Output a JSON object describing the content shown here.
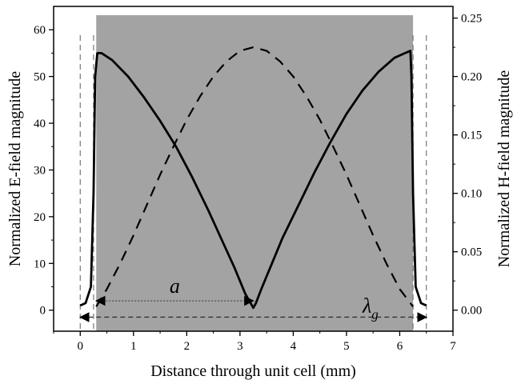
{
  "chart_data": {
    "type": "line",
    "xlabel": "Distance through unit cell (mm)",
    "ylabel_left": "Normalized E-field magnitude",
    "ylabel_right": "Normalized H-field magnitude",
    "xlim": [
      -0.5,
      7
    ],
    "ylim_left": [
      -4.5,
      65
    ],
    "ylim_right": [
      -0.018,
      0.26
    ],
    "x_ticks": [
      "0",
      "1",
      "2",
      "3",
      "4",
      "5",
      "6",
      "7"
    ],
    "y_ticks_left": [
      "0",
      "10",
      "20",
      "30",
      "40",
      "50",
      "60"
    ],
    "y_ticks_right": [
      "0.00",
      "0.05",
      "0.10",
      "0.15",
      "0.20",
      "0.25"
    ],
    "shaded_region": {
      "x_start": 0.3,
      "x_end": 6.25,
      "color": "#a3a3a3"
    },
    "vertical_dashed_lines": [
      0,
      0.25,
      6.25,
      6.5
    ],
    "series": [
      {
        "axis": "left",
        "style": "solid",
        "x": [
          0.0,
          0.1,
          0.2,
          0.25,
          0.28,
          0.32,
          0.4,
          0.6,
          0.9,
          1.2,
          1.5,
          1.8,
          2.1,
          2.4,
          2.7,
          2.9,
          3.1,
          3.2,
          3.25,
          3.3,
          3.4,
          3.6,
          3.8,
          4.1,
          4.4,
          4.7,
          5.0,
          5.3,
          5.6,
          5.9,
          6.1,
          6.2,
          6.22,
          6.25,
          6.3,
          6.4,
          6.5
        ],
        "y": [
          1.0,
          1.5,
          5.0,
          25.0,
          50.0,
          55.0,
          55.0,
          53.5,
          50.0,
          45.5,
          40.5,
          35.0,
          28.5,
          21.5,
          14.0,
          9.0,
          3.5,
          1.5,
          0.5,
          1.5,
          4.5,
          10.0,
          15.5,
          22.5,
          29.5,
          36.0,
          42.0,
          47.0,
          51.0,
          54.0,
          55.0,
          55.5,
          50.0,
          25.0,
          5.0,
          1.5,
          1.0
        ]
      },
      {
        "axis": "right",
        "style": "dashed",
        "x": [
          0.3,
          0.5,
          0.75,
          1.0,
          1.25,
          1.5,
          1.75,
          2.0,
          2.25,
          2.5,
          2.75,
          3.0,
          3.25,
          3.5,
          3.75,
          4.0,
          4.25,
          4.5,
          4.75,
          5.0,
          5.25,
          5.5,
          5.75,
          6.0,
          6.25
        ],
        "y": [
          0.003,
          0.018,
          0.04,
          0.064,
          0.09,
          0.116,
          0.14,
          0.163,
          0.183,
          0.2,
          0.213,
          0.222,
          0.225,
          0.222,
          0.213,
          0.2,
          0.183,
          0.163,
          0.14,
          0.116,
          0.09,
          0.064,
          0.04,
          0.018,
          0.003
        ]
      }
    ],
    "annotations": [
      {
        "text": "a",
        "type": "double_arrow",
        "x_start": 0.3,
        "x_end": 3.25,
        "y": 2.0
      },
      {
        "text": "λ",
        "subscript": "g",
        "type": "double_arrow",
        "x_start": 0.0,
        "x_end": 6.5,
        "y": -1.5
      }
    ]
  }
}
